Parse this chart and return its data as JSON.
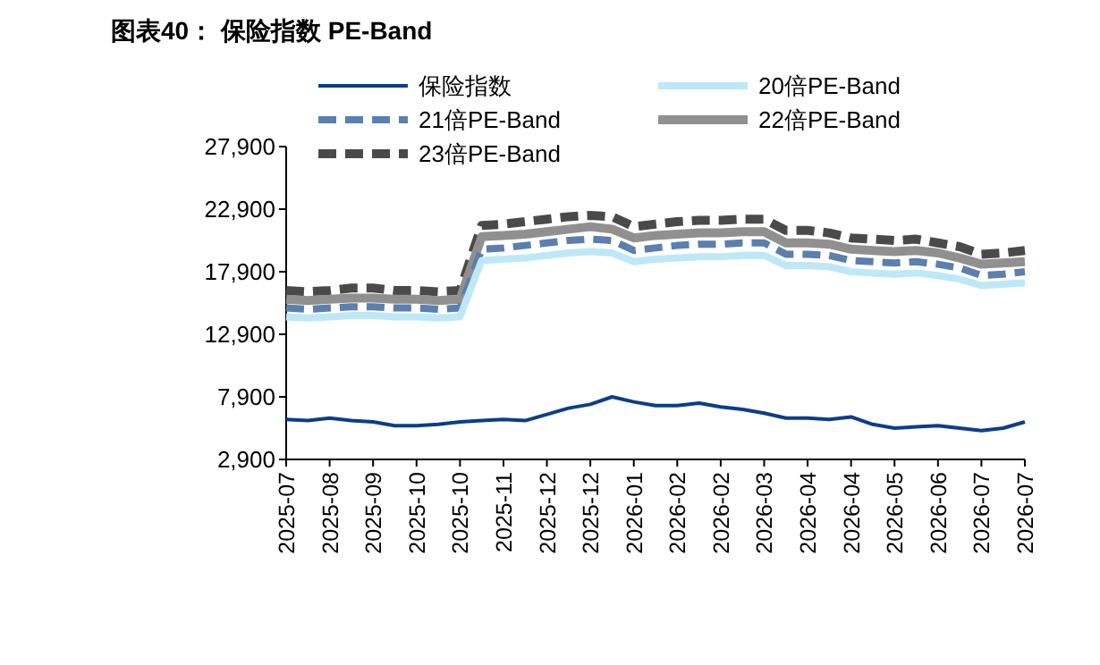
{
  "chart_data": {
    "type": "line",
    "title": "图表40： 保险指数 PE-Band",
    "categories": [
      "2025-07",
      null,
      "2025-08",
      null,
      "2025-09",
      null,
      "2025-10",
      null,
      "2025-10",
      null,
      "2025-11",
      null,
      "2025-12",
      null,
      "2025-12",
      null,
      "2026-01",
      null,
      "2026-02",
      null,
      "2026-02",
      null,
      "2026-03",
      null,
      "2026-04",
      null,
      "2026-04",
      null,
      "2026-05",
      null,
      "2026-06",
      null,
      "2026-07",
      null,
      "2026-07"
    ],
    "series": [
      {
        "name": "保险指数",
        "color": "#0d3d8a",
        "line_style": "solid",
        "values": [
          6100,
          6000,
          6200,
          6000,
          5900,
          5600,
          5600,
          5700,
          5900,
          6000,
          6100,
          6000,
          6500,
          7000,
          7300,
          7900,
          7500,
          7200,
          7200,
          7400,
          7100,
          6900,
          6600,
          6200,
          6200,
          6100,
          6300,
          5700,
          5400,
          5500,
          5600,
          5400,
          5200,
          5400,
          5900
        ]
      },
      {
        "name": "20倍PE-Band",
        "color": "#bfe8f7",
        "line_style": "solid",
        "values": [
          14300,
          14200,
          14300,
          14400,
          14400,
          14300,
          14300,
          14200,
          14300,
          18800,
          18900,
          19000,
          19200,
          19400,
          19500,
          19400,
          18700,
          18900,
          19000,
          19100,
          19100,
          19200,
          19200,
          18400,
          18400,
          18300,
          17900,
          17800,
          17700,
          17800,
          17600,
          17300,
          16800,
          16900,
          17000
        ]
      },
      {
        "name": "21倍PE-Band",
        "color": "#5b7fae",
        "line_style": "dashed",
        "values": [
          15000,
          14900,
          15000,
          15100,
          15100,
          15000,
          15000,
          14900,
          15000,
          19700,
          19800,
          20000,
          20200,
          20400,
          20500,
          20400,
          19600,
          19800,
          20000,
          20100,
          20100,
          20200,
          20200,
          19300,
          19300,
          19200,
          18800,
          18700,
          18600,
          18700,
          18500,
          18200,
          17600,
          17700,
          17900
        ]
      },
      {
        "name": "22倍PE-Band",
        "color": "#909090",
        "line_style": "solid",
        "values": [
          15700,
          15600,
          15700,
          15800,
          15800,
          15700,
          15700,
          15600,
          15700,
          20700,
          20800,
          20900,
          21100,
          21300,
          21500,
          21300,
          20600,
          20800,
          20900,
          21000,
          21000,
          21100,
          21100,
          20200,
          20200,
          20100,
          19700,
          19600,
          19500,
          19600,
          19400,
          19000,
          18500,
          18600,
          18700
        ]
      },
      {
        "name": "23倍PE-Band",
        "color": "#4a4a4a",
        "line_style": "dashed",
        "values": [
          16400,
          16300,
          16400,
          16600,
          16600,
          16400,
          16400,
          16300,
          16400,
          21600,
          21700,
          21900,
          22100,
          22300,
          22400,
          22300,
          21500,
          21700,
          21900,
          22000,
          22000,
          22100,
          22100,
          21200,
          21200,
          21000,
          20600,
          20500,
          20400,
          20500,
          20200,
          19900,
          19300,
          19400,
          19600
        ]
      }
    ],
    "ylim": [
      2900,
      27900
    ],
    "yticks": [
      {
        "value": 2900,
        "label": "2,900"
      },
      {
        "value": 7900,
        "label": "7,900"
      },
      {
        "value": 12900,
        "label": "12,900"
      },
      {
        "value": 17900,
        "label": "17,900"
      },
      {
        "value": 22900,
        "label": "22,900"
      },
      {
        "value": 27900,
        "label": "27,900"
      }
    ],
    "legend": "top",
    "grid": false
  }
}
